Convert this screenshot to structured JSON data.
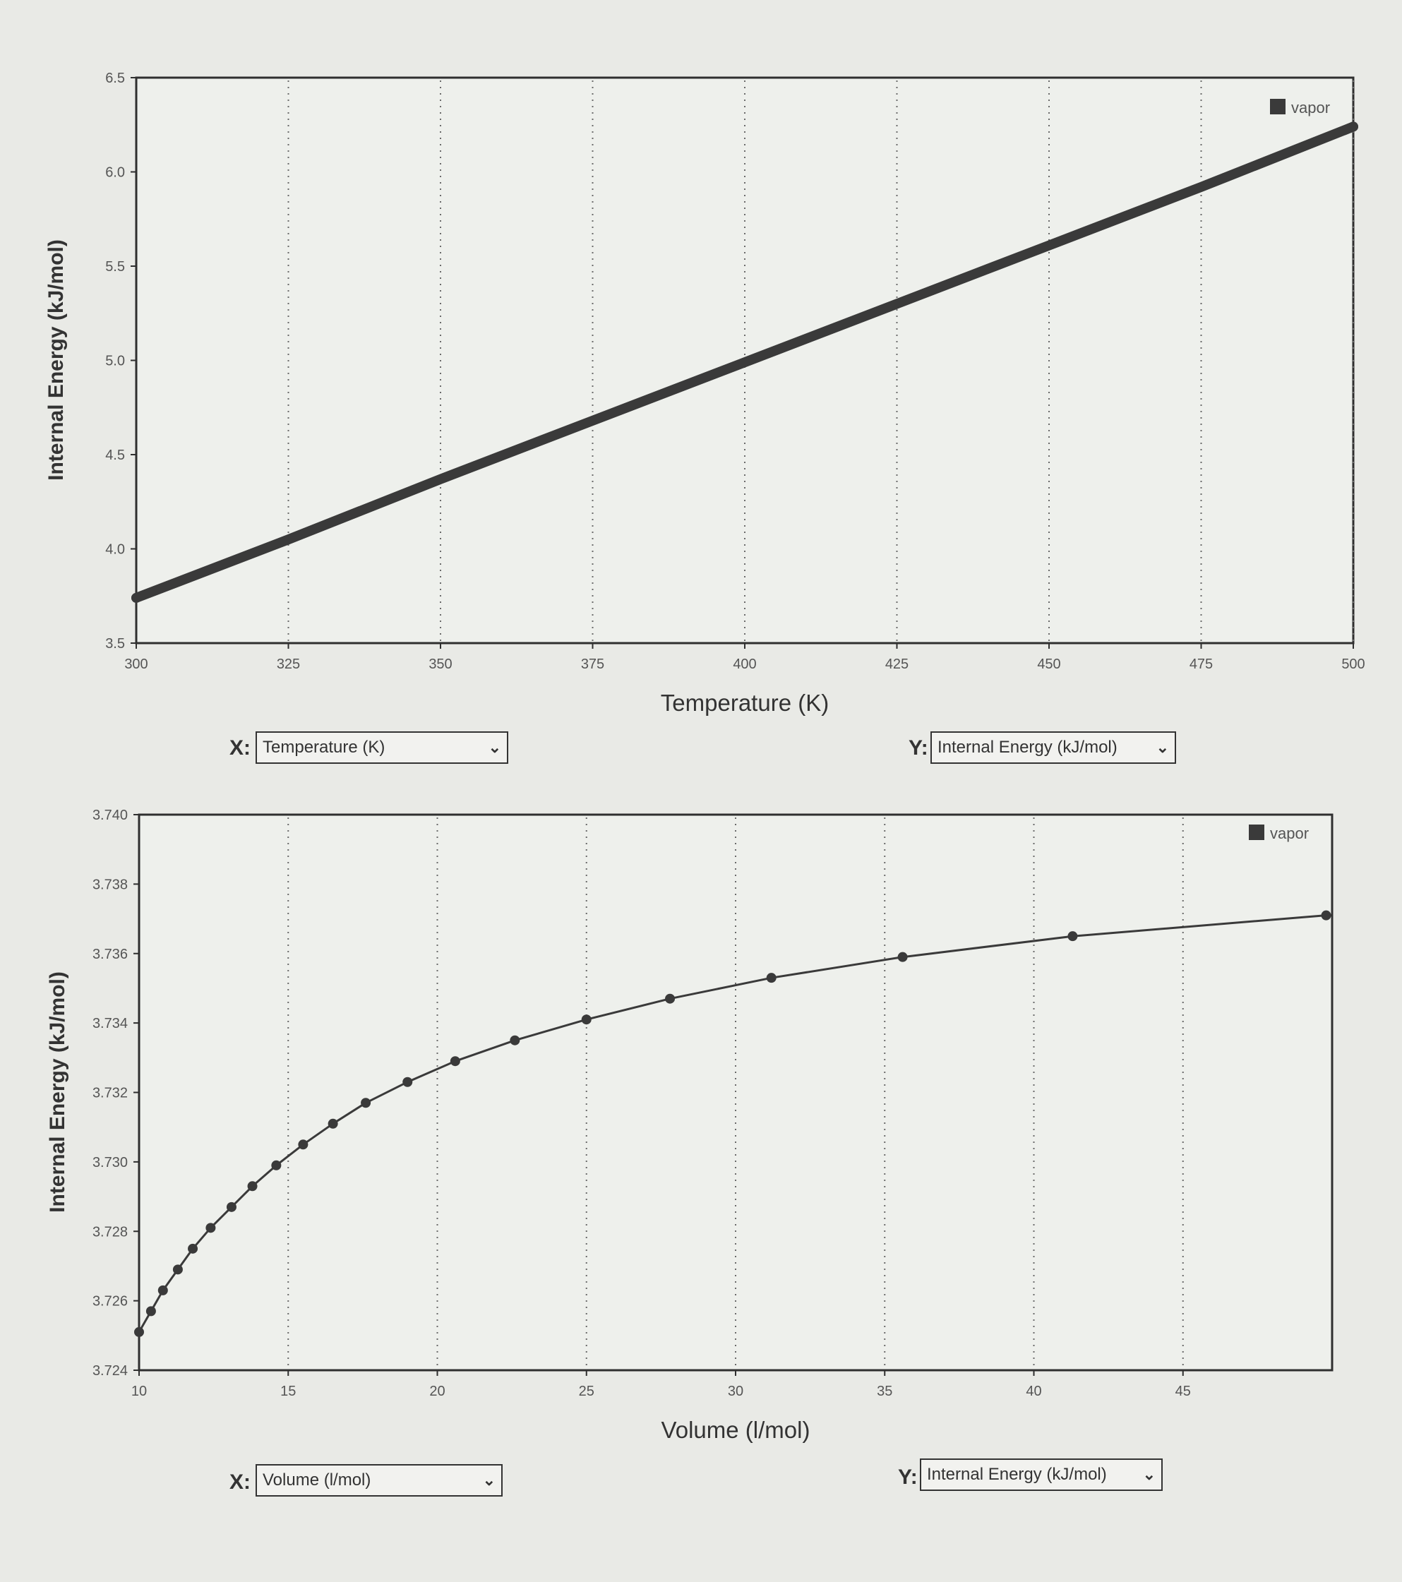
{
  "chart_data": [
    {
      "type": "line",
      "xlabel": "Temperature (K)",
      "ylabel": "Internal Energy (kJ/mol)",
      "xlim": [
        300,
        500
      ],
      "ylim": [
        3.5,
        6.5
      ],
      "xticks": [
        "300",
        "325",
        "350",
        "375",
        "400",
        "425",
        "450",
        "475",
        "500"
      ],
      "yticks": [
        "3.5",
        "4.0",
        "4.5",
        "5.0",
        "5.5",
        "6.0",
        "6.5"
      ],
      "grid": "vertical dotted",
      "legend": "top-right",
      "series": [
        {
          "name": "vapor",
          "color": "#3a3a3a",
          "x": [
            300,
            325,
            350,
            375,
            400,
            425,
            450,
            475,
            500
          ],
          "y": [
            3.74,
            4.05,
            4.37,
            4.68,
            4.99,
            5.3,
            5.61,
            5.92,
            6.24
          ]
        }
      ]
    },
    {
      "type": "line",
      "xlabel": "Volume (l/mol)",
      "ylabel": "Internal Energy (kJ/mol)",
      "xlim": [
        10,
        50
      ],
      "ylim": [
        3.724,
        3.74
      ],
      "xticks": [
        "10",
        "15",
        "20",
        "25",
        "30",
        "35",
        "40",
        "45"
      ],
      "yticks": [
        "3.724",
        "3.726",
        "3.728",
        "3.730",
        "3.732",
        "3.734",
        "3.736",
        "3.738",
        "3.740"
      ],
      "grid": "vertical dotted",
      "legend": "top-right",
      "series": [
        {
          "name": "vapor",
          "color": "#3a3a3a",
          "x": [
            10.0,
            10.4,
            10.8,
            11.3,
            11.8,
            12.4,
            13.1,
            13.8,
            14.6,
            15.5,
            16.5,
            17.6,
            19.0,
            20.6,
            22.6,
            25.0,
            27.8,
            31.2,
            35.6,
            41.3,
            49.8
          ],
          "y": [
            3.7251,
            3.7257,
            3.7263,
            3.7269,
            3.7275,
            3.7281,
            3.7287,
            3.7293,
            3.7299,
            3.7305,
            3.7311,
            3.7317,
            3.7323,
            3.7329,
            3.7335,
            3.7341,
            3.7347,
            3.7353,
            3.7359,
            3.7365,
            3.7371
          ]
        }
      ]
    }
  ],
  "controls": [
    {
      "x_prefix": "X:",
      "x_selected": "Temperature (K)",
      "y_prefix": "Y:",
      "y_selected": "Internal Energy (kJ/mol)"
    },
    {
      "x_prefix": "X:",
      "x_selected": "Volume (l/mol)",
      "y_prefix": "Y:",
      "y_selected": "Internal Energy (kJ/mol)"
    }
  ],
  "icons": {
    "dropdown": "chevron-down-icon",
    "legend_marker": "square-marker-icon"
  }
}
